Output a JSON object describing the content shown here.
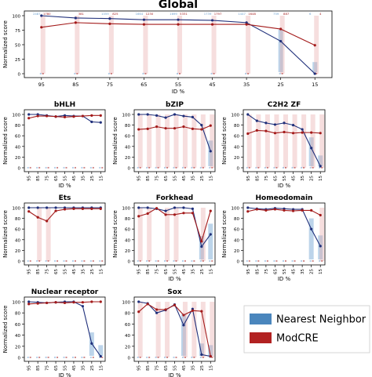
{
  "chart_data": [
    {
      "id": "global",
      "type": "line",
      "title": "Global",
      "xlabel": "ID %",
      "ylabel": "Normalized score",
      "categories": [
        "95",
        "85",
        "75",
        "65",
        "55",
        "45",
        "35",
        "25",
        "15"
      ],
      "ylim": [
        0,
        100
      ],
      "yticks": [
        0,
        25,
        50,
        75,
        100
      ],
      "series": [
        {
          "name": "Nearest Neighbor",
          "values": [
            100,
            96,
            95,
            93,
            93,
            92,
            88,
            56,
            0
          ]
        },
        {
          "name": "ModCRE",
          "values": [
            80,
            88,
            86,
            85,
            85,
            85,
            85,
            77,
            49
          ]
        }
      ],
      "counts": {
        "Nearest Neighbor": [
          "2487",
          "",
          "1059",
          "1664",
          "1699",
          "1739",
          "1447",
          "759",
          "6"
        ],
        "ModCRE": [
          "1780",
          "381",
          "825",
          "1230",
          "5331",
          "1797",
          "1648",
          "887",
          "4"
        ]
      }
    },
    {
      "id": "bhlh",
      "type": "line",
      "title": "bHLH",
      "xlabel": "ID %",
      "ylabel": "Normalized score",
      "categories": [
        "95",
        "85",
        "75",
        "65",
        "55",
        "45",
        "35",
        "25",
        "15"
      ],
      "ylim": [
        0,
        100
      ],
      "yticks": [
        0,
        20,
        40,
        60,
        80,
        100
      ],
      "series": [
        {
          "name": "Nearest Neighbor",
          "values": [
            100,
            100,
            98,
            96,
            98,
            97,
            97,
            86,
            85
          ]
        },
        {
          "name": "ModCRE",
          "values": [
            93,
            97,
            97,
            96,
            95,
            96,
            97,
            98,
            98
          ]
        }
      ]
    },
    {
      "id": "bzip",
      "type": "line",
      "title": "bZIP",
      "xlabel": "",
      "ylabel": "Normalized score",
      "categories": [
        "95",
        "85",
        "75",
        "65",
        "55",
        "45",
        "35",
        "25",
        "15"
      ],
      "ylim": [
        0,
        100
      ],
      "yticks": [
        0,
        20,
        40,
        60,
        80,
        100
      ],
      "series": [
        {
          "name": "Nearest Neighbor",
          "values": [
            100,
            100,
            98,
            94,
            100,
            97,
            95,
            80,
            31
          ]
        },
        {
          "name": "ModCRE",
          "values": [
            72,
            73,
            77,
            74,
            74,
            77,
            73,
            72,
            79
          ]
        }
      ]
    },
    {
      "id": "c2h2",
      "type": "line",
      "title": "C2H2 ZF",
      "xlabel": "ID %",
      "ylabel": "Normalized score",
      "categories": [
        "95",
        "85",
        "75",
        "65",
        "55",
        "45",
        "35",
        "25",
        "15"
      ],
      "ylim": [
        0,
        100
      ],
      "yticks": [
        0,
        20,
        40,
        60,
        80,
        100
      ],
      "series": [
        {
          "name": "Nearest Neighbor",
          "values": [
            100,
            88,
            84,
            81,
            84,
            80,
            72,
            37,
            3
          ]
        },
        {
          "name": "ModCRE",
          "values": [
            64,
            70,
            69,
            65,
            67,
            65,
            66,
            66,
            65
          ]
        }
      ]
    },
    {
      "id": "ets",
      "type": "line",
      "title": "Ets",
      "xlabel": "",
      "ylabel": "Normalized score",
      "categories": [
        "95",
        "85",
        "75",
        "65",
        "55",
        "45",
        "35",
        "25",
        "15"
      ],
      "ylim": [
        0,
        100
      ],
      "yticks": [
        0,
        20,
        40,
        60,
        80,
        100
      ],
      "series": [
        {
          "name": "Nearest Neighbor",
          "values": [
            100,
            100,
            100,
            100,
            100,
            100,
            100,
            100,
            100
          ]
        },
        {
          "name": "ModCRE",
          "values": [
            93,
            82,
            75,
            94,
            97,
            98,
            98,
            98,
            98
          ]
        }
      ]
    },
    {
      "id": "forkhead",
      "type": "line",
      "title": "Forkhead",
      "xlabel": "ID %",
      "ylabel": "Normalized score",
      "categories": [
        "95",
        "85",
        "75",
        "65",
        "55",
        "45",
        "35",
        "25",
        "15"
      ],
      "ylim": [
        0,
        100
      ],
      "yticks": [
        0,
        20,
        40,
        60,
        80,
        100
      ],
      "series": [
        {
          "name": "Nearest Neighbor",
          "values": [
            100,
            100,
            98,
            94,
            100,
            100,
            98,
            27,
            50
          ]
        },
        {
          "name": "ModCRE",
          "values": [
            84,
            89,
            99,
            87,
            87,
            90,
            90,
            37,
            94
          ]
        }
      ]
    },
    {
      "id": "homeodomain",
      "type": "line",
      "title": "Homeodomain",
      "xlabel": "ID %",
      "ylabel": "Normalized score",
      "categories": [
        "95",
        "85",
        "75",
        "65",
        "55",
        "45",
        "35",
        "25",
        "15"
      ],
      "ylim": [
        0,
        100
      ],
      "yticks": [
        0,
        20,
        40,
        60,
        80,
        100
      ],
      "series": [
        {
          "name": "Nearest Neighbor",
          "values": [
            100,
            98,
            97,
            99,
            98,
            97,
            97,
            60,
            28
          ]
        },
        {
          "name": "ModCRE",
          "values": [
            93,
            97,
            95,
            97,
            95,
            94,
            95,
            95,
            86
          ]
        }
      ]
    },
    {
      "id": "nuclear",
      "type": "line",
      "title": "Nuclear receptor",
      "xlabel": "ID %",
      "ylabel": "Normalized score",
      "categories": [
        "95",
        "85",
        "75",
        "65",
        "55",
        "45",
        "35",
        "25",
        "15"
      ],
      "ylim": [
        0,
        100
      ],
      "yticks": [
        0,
        20,
        40,
        60,
        80,
        100
      ],
      "series": [
        {
          "name": "Nearest Neighbor",
          "values": [
            100,
            99,
            98,
            99,
            100,
            100,
            92,
            25,
            2
          ]
        },
        {
          "name": "ModCRE",
          "values": [
            96,
            97,
            98,
            99,
            98,
            99,
            99,
            100,
            100
          ]
        }
      ]
    },
    {
      "id": "sox",
      "type": "line",
      "title": "Sox",
      "xlabel": "ID %",
      "ylabel": "",
      "categories": [
        "95",
        "85",
        "75",
        "65",
        "55",
        "45",
        "35",
        "25",
        "15"
      ],
      "ylim": [
        0,
        100
      ],
      "yticks": [
        0,
        20,
        40,
        60,
        80,
        100
      ],
      "series": [
        {
          "name": "Nearest Neighbor",
          "values": [
            100,
            97,
            80,
            85,
            95,
            58,
            87,
            5,
            2
          ]
        },
        {
          "name": "ModCRE",
          "values": [
            82,
            96,
            86,
            86,
            94,
            76,
            84,
            83,
            2
          ]
        }
      ]
    }
  ],
  "legend": {
    "items": [
      {
        "name": "Nearest Neighbor",
        "color": "#4a86bd"
      },
      {
        "name": "ModCRE",
        "color": "#b22222"
      }
    ]
  },
  "colors": {
    "nn_line": "#1f2f7a",
    "nn_box": "#6a9fd0",
    "mc_line": "#a31a1a",
    "mc_box": "#e6a0a0"
  }
}
